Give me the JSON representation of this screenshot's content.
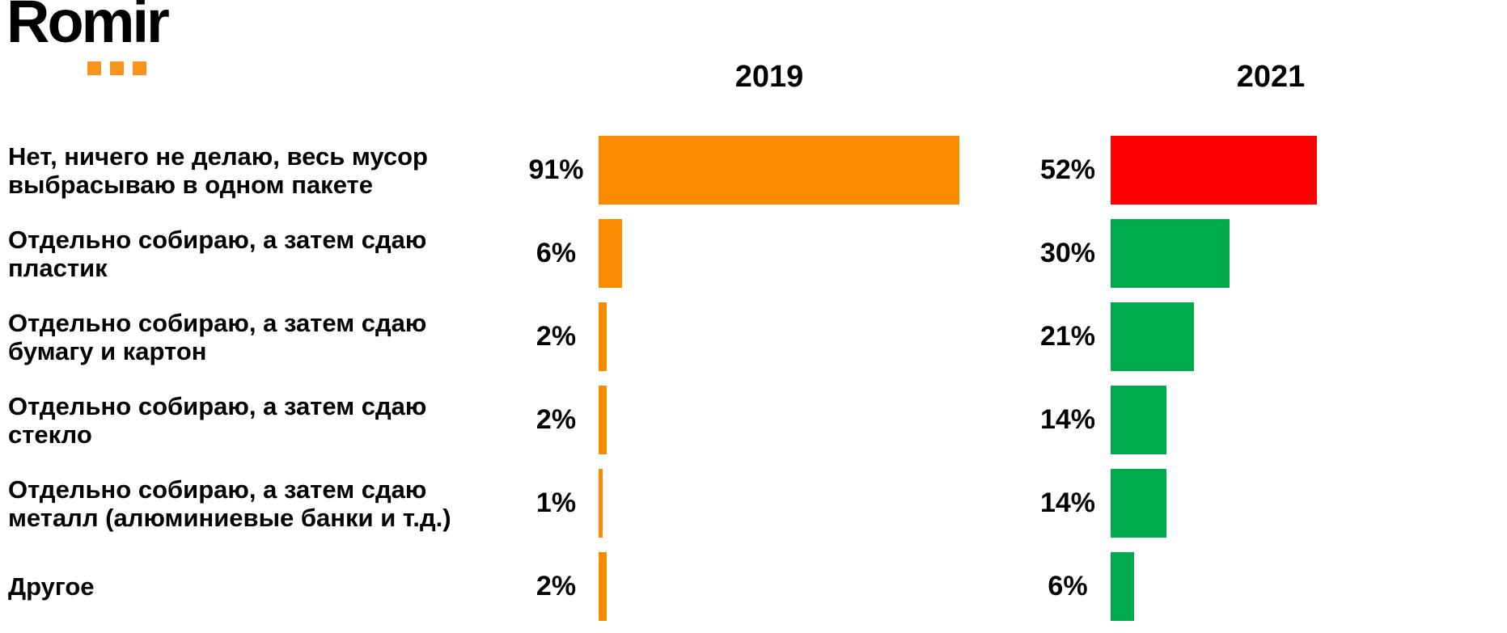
{
  "logo": {
    "text": "Romir",
    "text_color": "#000000",
    "dot_color": "#F7941E"
  },
  "chart_data": {
    "type": "bar",
    "orientation": "horizontal",
    "title": "",
    "unit": "%",
    "categories": [
      "Нет, ничего не делаю, весь мусор выбрасываю в одном пакете",
      "Отдельно собираю, а затем сдаю пластик",
      "Отдельно собираю, а затем сдаю бумагу и картон",
      "Отдельно собираю, а затем сдаю стекло",
      "Отдельно собираю, а затем сдаю металл (алюминиевые банки и т.д.)",
      "Другое"
    ],
    "series": [
      {
        "name": "2019",
        "values": [
          91,
          6,
          2,
          2,
          1,
          2
        ],
        "colors": [
          "#FA8A00",
          "#FA8A00",
          "#FA8A00",
          "#FA8A00",
          "#FA8A00",
          "#FA8A00"
        ]
      },
      {
        "name": "2021",
        "values": [
          52,
          30,
          21,
          14,
          14,
          6
        ],
        "colors": [
          "#FF0000",
          "#00AB4E",
          "#00AB4E",
          "#00AB4E",
          "#00AB4E",
          "#00AB4E"
        ]
      }
    ],
    "value_labels": {
      "s2019": [
        "91%",
        "6%",
        "2%",
        "2%",
        "1%",
        "2%"
      ],
      "s2021": [
        "52%",
        "30%",
        "21%",
        "14%",
        "14%",
        "6%"
      ]
    },
    "xlim": [
      0,
      100
    ],
    "grid": false,
    "axes_shown": false,
    "legend": "year headers above each bar column"
  }
}
